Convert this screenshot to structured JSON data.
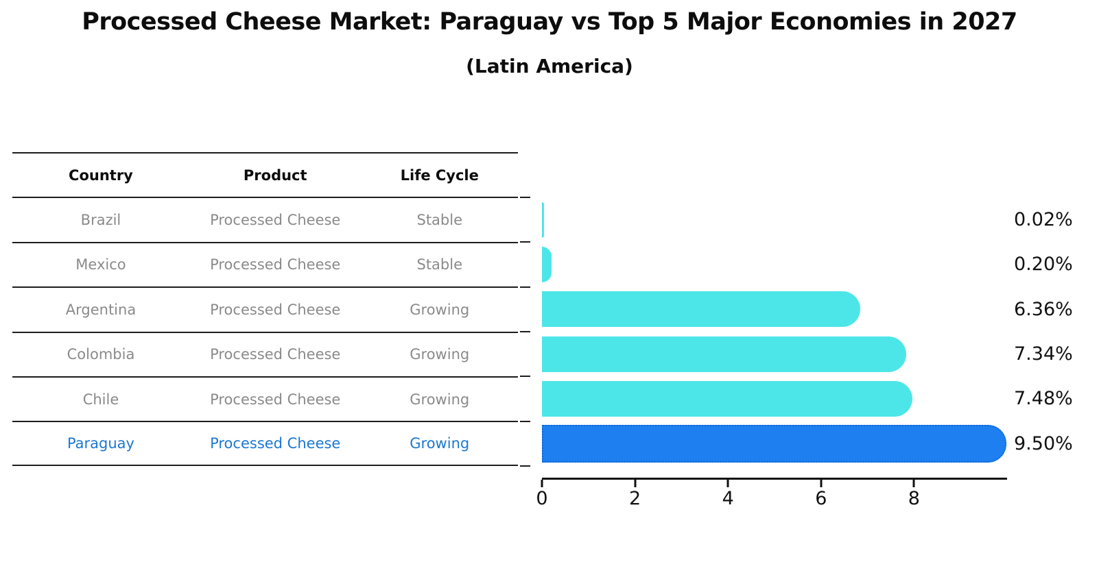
{
  "chart_data": {
    "type": "bar",
    "orientation": "horizontal",
    "title": "Processed Cheese Market: Paraguay vs Top 5 Major Economies in 2027",
    "subtitle": "(Latin America)",
    "categories": [
      "Brazil",
      "Mexico",
      "Argentina",
      "Colombia",
      "Chile",
      "Paraguay"
    ],
    "values": [
      0.02,
      0.2,
      6.36,
      7.34,
      7.48,
      9.5
    ],
    "value_labels": [
      "0.02%",
      "0.20%",
      "6.36%",
      "7.34%",
      "7.48%",
      "9.50%"
    ],
    "highlight_category": "Paraguay",
    "highlight_index": 5,
    "xlabel": "",
    "ylabel": "",
    "xlim": [
      0,
      10
    ],
    "x_ticks": [
      "0",
      "2",
      "4",
      "6",
      "8"
    ],
    "grid": false,
    "legend": false,
    "bar_color": "#4ce6e8",
    "highlight_bar_color": "#1e80f0",
    "highlight_border_color": "#0c66d6"
  },
  "table": {
    "headers": [
      "Country",
      "Product",
      "Life Cycle"
    ],
    "rows": [
      {
        "country": "Brazil",
        "product": "Processed Cheese",
        "life_cycle": "Stable"
      },
      {
        "country": "Mexico",
        "product": "Processed Cheese",
        "life_cycle": "Stable"
      },
      {
        "country": "Argentina",
        "product": "Processed Cheese",
        "life_cycle": "Growing"
      },
      {
        "country": "Colombia",
        "product": "Processed Cheese",
        "life_cycle": "Growing"
      },
      {
        "country": "Chile",
        "product": "Processed Cheese",
        "life_cycle": "Growing"
      },
      {
        "country": "Paraguay",
        "product": "Processed Cheese",
        "life_cycle": "Growing"
      }
    ]
  },
  "colors": {
    "text": "#0d0d0d",
    "muted_text": "#8a8a8a",
    "highlight_text": "#1b78d2",
    "axis": "#111111"
  }
}
